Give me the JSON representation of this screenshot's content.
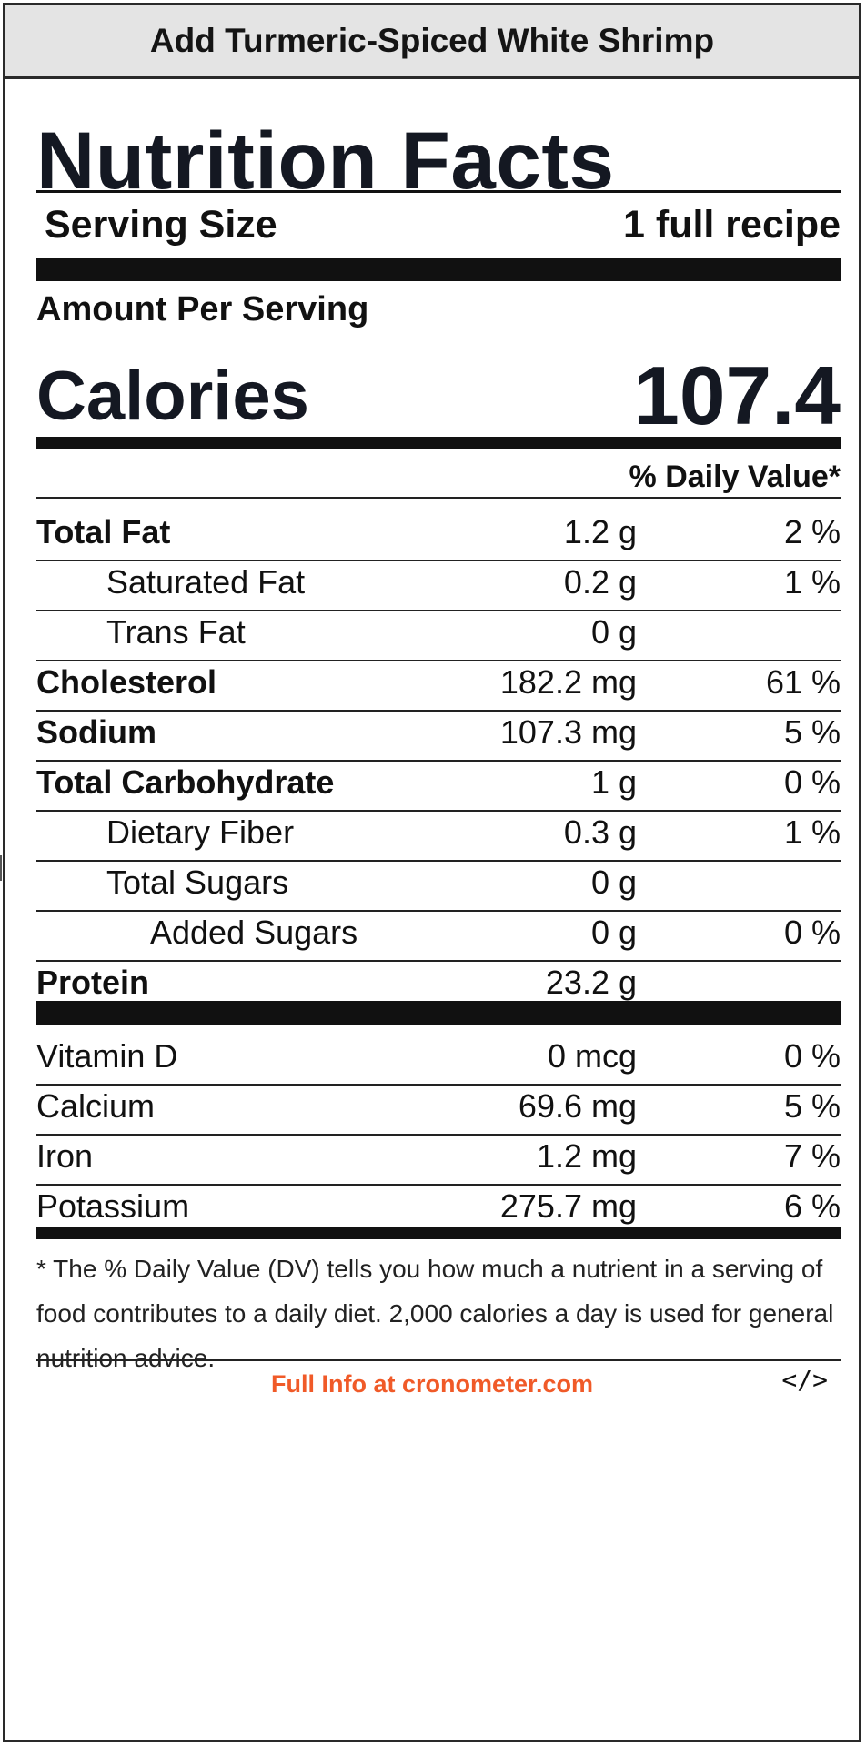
{
  "header": {
    "title": "Add Turmeric-Spiced White Shrimp"
  },
  "label_title": "Nutrition Facts",
  "serving": {
    "label": "Serving Size",
    "value": "1 full recipe"
  },
  "amount_per_serving": "Amount Per Serving",
  "calories": {
    "label": "Calories",
    "value": "107.4"
  },
  "daily_value_header": "% Daily Value*",
  "nutrients": [
    {
      "name": "Total Fat",
      "amount": "1.2 g",
      "dv": "2 %"
    },
    {
      "name": "Saturated Fat",
      "amount": "0.2 g",
      "dv": "1 %"
    },
    {
      "name": "Trans Fat",
      "amount": "0 g",
      "dv": ""
    },
    {
      "name": "Cholesterol",
      "amount": "182.2 mg",
      "dv": "61 %"
    },
    {
      "name": "Sodium",
      "amount": "107.3 mg",
      "dv": "5 %"
    },
    {
      "name": "Total Carbohydrate",
      "amount": "1 g",
      "dv": "0 %"
    },
    {
      "name": "Dietary Fiber",
      "amount": "0.3 g",
      "dv": "1 %"
    },
    {
      "name": "Total Sugars",
      "amount": "0 g",
      "dv": ""
    },
    {
      "name": "Added Sugars",
      "amount": "0 g",
      "dv": "0 %"
    },
    {
      "name": "Protein",
      "amount": "23.2 g",
      "dv": ""
    }
  ],
  "vitamins": [
    {
      "name": "Vitamin D",
      "amount": "0 mcg",
      "dv": "0 %"
    },
    {
      "name": "Calcium",
      "amount": "69.6 mg",
      "dv": "5 %"
    },
    {
      "name": "Iron",
      "amount": "1.2 mg",
      "dv": "7 %"
    },
    {
      "name": "Potassium",
      "amount": "275.7 mg",
      "dv": "6 %"
    }
  ],
  "footnote": "* The % Daily Value (DV) tells you how much a nutrient in a serving of food contributes to a daily diet. 2,000 calories a day is used for general nutrition advice.",
  "footer": {
    "link_text": "Full Info at cronometer.com",
    "embed_icon": "</>"
  },
  "colors": {
    "link": "#f05a28",
    "header_bg": "#e4e4e4"
  }
}
